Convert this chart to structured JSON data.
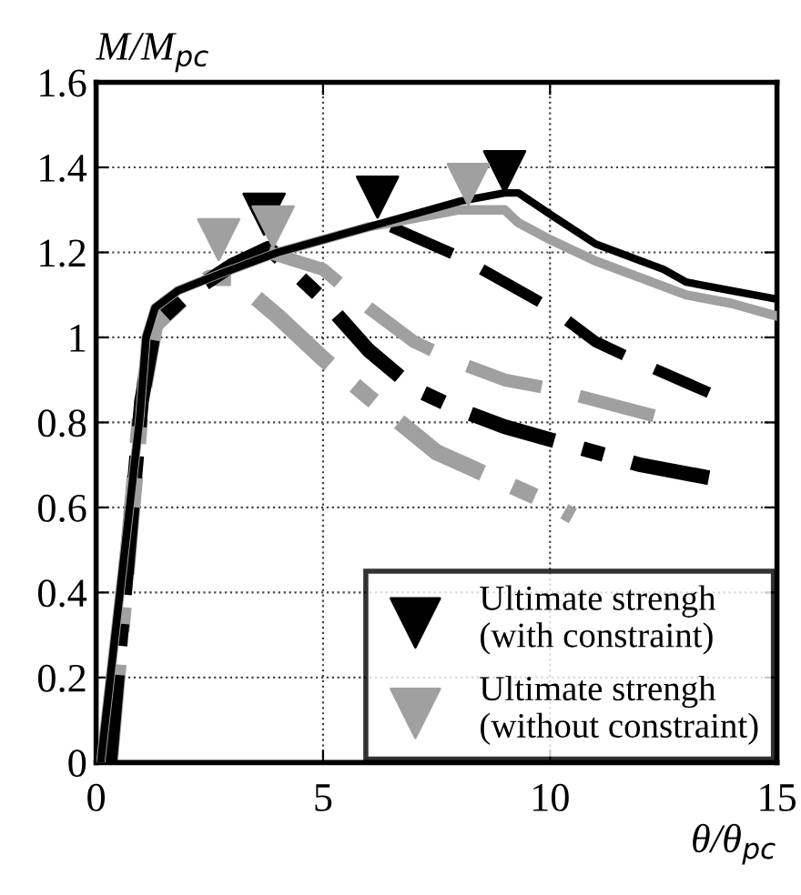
{
  "chart_data": {
    "type": "line",
    "xlabel": "θ/θ$_{pc}$",
    "ylabel": "M/M$_{pc}$",
    "xlim": [
      0,
      15
    ],
    "xticks": [
      0,
      5,
      10,
      15
    ],
    "ylim": [
      0,
      1.6
    ],
    "yticks": [
      0,
      0.2,
      0.4,
      0.6,
      0.8,
      1,
      1.2,
      1.4,
      1.6
    ],
    "grid": true,
    "legend": "bottom right",
    "series": [
      {
        "color": "#000000",
        "line_style": "solid",
        "x": [
          0.1,
          0.96,
          1.1,
          1.3,
          1.8,
          2.5,
          3,
          4,
          5,
          6,
          7,
          8,
          9,
          9.3,
          10,
          11,
          12,
          12.5,
          13,
          14,
          15
        ],
        "values": [
          0,
          0.81,
          1.0,
          1.07,
          1.11,
          1.14,
          1.16,
          1.2,
          1.23,
          1.26,
          1.29,
          1.32,
          1.34,
          1.34,
          1.29,
          1.22,
          1.18,
          1.16,
          1.13,
          1.11,
          1.09
        ]
      },
      {
        "color": "#a0a0a0",
        "line_style": "solid",
        "x": [
          0.1,
          0.96,
          1.1,
          1.3,
          1.8,
          2.5,
          3,
          4,
          5,
          6,
          7,
          8,
          9,
          9.3,
          10,
          11,
          12,
          13,
          14,
          15
        ],
        "values": [
          0,
          0.81,
          1.0,
          1.07,
          1.11,
          1.14,
          1.16,
          1.2,
          1.23,
          1.26,
          1.28,
          1.3,
          1.3,
          1.27,
          1.23,
          1.18,
          1.14,
          1.1,
          1.08,
          1.05
        ]
      },
      {
        "color": "#000000",
        "line_style": "dashed",
        "x": [
          6.5,
          8,
          10,
          11,
          12,
          13.5
        ],
        "values": [
          1.26,
          1.19,
          1.07,
          0.99,
          0.94,
          0.87
        ]
      },
      {
        "color": "#a0a0a0",
        "line_style": "dashed",
        "x": [
          3.8,
          5,
          6,
          7,
          8,
          9,
          10,
          12.5
        ],
        "values": [
          1.2,
          1.16,
          1.07,
          0.99,
          0.94,
          0.9,
          0.88,
          0.81
        ]
      },
      {
        "color": "#000000",
        "line_style": "dashdot",
        "x": [
          0.3,
          1.0,
          1.3,
          2,
          3,
          3.8,
          4.5,
          5,
          6,
          7,
          8,
          9,
          10,
          12,
          13.5
        ],
        "values": [
          0,
          0.85,
          1.03,
          1.1,
          1.17,
          1.21,
          1.14,
          1.09,
          0.97,
          0.88,
          0.83,
          0.79,
          0.76,
          0.7,
          0.67
        ]
      },
      {
        "color": "#a0a0a0",
        "line_style": "dashdot",
        "x": [
          0.3,
          1.0,
          1.3,
          2,
          2.5,
          3,
          4,
          5,
          6,
          7.5,
          10,
          10.5
        ],
        "values": [
          0,
          0.85,
          1.03,
          1.1,
          1.14,
          1.14,
          1.05,
          0.95,
          0.86,
          0.73,
          0.61,
          0.58
        ]
      },
      {
        "type": "scatter",
        "name": "Ultimate strengh\n(with constraint)",
        "color": "#000000",
        "marker": "triangle",
        "x": [
          3.7,
          6.2,
          9.0
        ],
        "values": [
          1.29,
          1.33,
          1.39
        ]
      },
      {
        "type": "scatter",
        "name": "Ultimate strengh\n(without constraint)",
        "color": "#a0a0a0",
        "marker": "triangle",
        "x": [
          2.7,
          3.9,
          8.2
        ],
        "values": [
          1.23,
          1.26,
          1.36
        ]
      }
    ]
  }
}
